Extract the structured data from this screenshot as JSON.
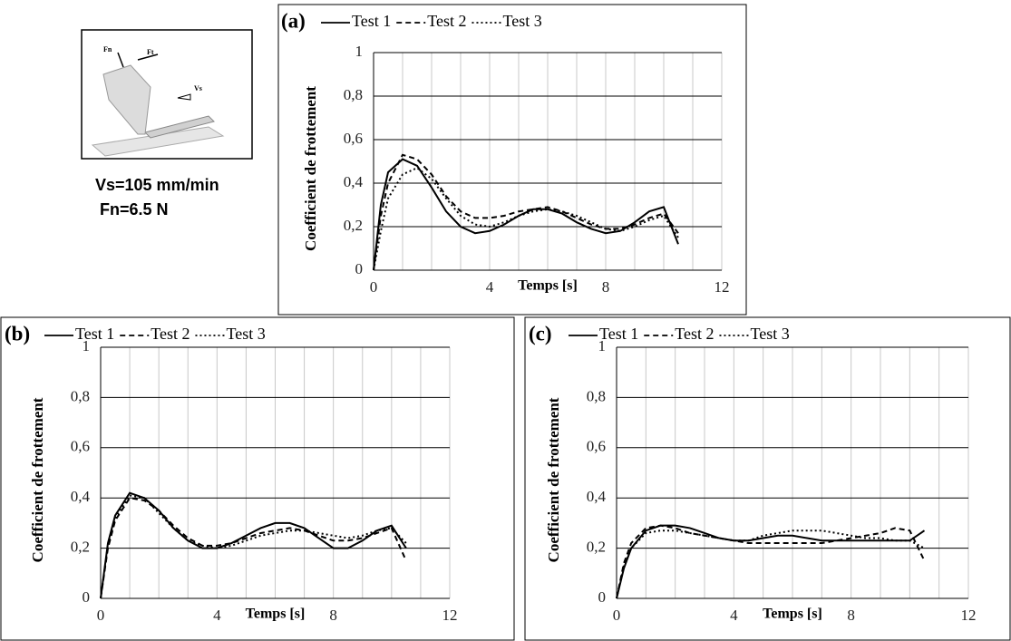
{
  "inset": {
    "labels": [
      "Fn",
      "Ft",
      "Vs"
    ],
    "caption": [
      "Vs=105 mm/min",
      "Fn=6.5 N"
    ]
  },
  "chart_data": [
    {
      "type": "line",
      "title": "(a)",
      "xlabel": "Temps [s]",
      "ylabel": "Coefficient de frottement",
      "x": [
        0,
        0.25,
        0.5,
        1,
        1.5,
        2,
        2.5,
        3,
        3.5,
        4,
        4.5,
        5,
        5.5,
        6,
        6.5,
        7,
        7.5,
        8,
        8.5,
        9,
        9.5,
        10,
        10.5
      ],
      "series": [
        {
          "name": "Test 1",
          "color": "#000000",
          "dash": "solid",
          "values": [
            0,
            0.3,
            0.45,
            0.51,
            0.48,
            0.38,
            0.27,
            0.2,
            0.17,
            0.18,
            0.21,
            0.25,
            0.28,
            0.28,
            0.26,
            0.22,
            0.19,
            0.17,
            0.18,
            0.22,
            0.27,
            0.29,
            0.12
          ]
        },
        {
          "name": "Test 2",
          "color": "#000000",
          "dash": "dashed",
          "values": [
            0,
            0.25,
            0.4,
            0.53,
            0.51,
            0.44,
            0.34,
            0.27,
            0.24,
            0.24,
            0.25,
            0.27,
            0.28,
            0.29,
            0.27,
            0.24,
            0.21,
            0.19,
            0.19,
            0.21,
            0.24,
            0.26,
            0.17
          ]
        },
        {
          "name": "Test 3",
          "color": "#000000",
          "dash": "dotted",
          "values": [
            0,
            0.18,
            0.33,
            0.44,
            0.47,
            0.42,
            0.33,
            0.25,
            0.21,
            0.2,
            0.22,
            0.25,
            0.27,
            0.28,
            0.27,
            0.25,
            0.22,
            0.19,
            0.18,
            0.2,
            0.23,
            0.25,
            0.15
          ]
        }
      ],
      "xlim": [
        0,
        12
      ],
      "xticks": [
        0,
        4,
        8,
        12
      ],
      "xgrid": [
        0,
        1,
        2,
        3,
        4,
        5,
        6,
        7,
        8,
        9,
        10,
        11,
        12
      ],
      "ylim": [
        0,
        1
      ],
      "yticks": [
        0,
        {
          "value": 0.2,
          "label": "0,2"
        },
        {
          "value": 0.4,
          "label": "0,4"
        },
        {
          "value": 0.6,
          "label": "0,6"
        },
        {
          "value": 0.8,
          "label": "0,8"
        },
        1
      ],
      "grid": true
    },
    {
      "type": "line",
      "title": "(b)",
      "xlabel": "Temps [s]",
      "ylabel": "Coefficient de frottement",
      "x": [
        0,
        0.25,
        0.5,
        1,
        1.5,
        2,
        2.5,
        3,
        3.5,
        4,
        4.5,
        5,
        5.5,
        6,
        6.5,
        7,
        7.5,
        8,
        8.5,
        9,
        9.5,
        10,
        10.5
      ],
      "series": [
        {
          "name": "Test 1",
          "color": "#000000",
          "dash": "solid",
          "values": [
            0,
            0.22,
            0.33,
            0.42,
            0.4,
            0.35,
            0.28,
            0.23,
            0.2,
            0.2,
            0.22,
            0.25,
            0.28,
            0.3,
            0.3,
            0.28,
            0.24,
            0.2,
            0.2,
            0.23,
            0.27,
            0.29,
            0.2
          ]
        },
        {
          "name": "Test 2",
          "color": "#000000",
          "dash": "dashed",
          "values": [
            0,
            0.2,
            0.31,
            0.4,
            0.39,
            0.35,
            0.29,
            0.24,
            0.21,
            0.21,
            0.22,
            0.24,
            0.26,
            0.27,
            0.28,
            0.27,
            0.25,
            0.23,
            0.23,
            0.24,
            0.26,
            0.28,
            0.15
          ]
        },
        {
          "name": "Test 3",
          "color": "#000000",
          "dash": "dotted",
          "values": [
            0,
            0.21,
            0.32,
            0.41,
            0.4,
            0.34,
            0.28,
            0.23,
            0.21,
            0.2,
            0.21,
            0.23,
            0.25,
            0.26,
            0.27,
            0.27,
            0.26,
            0.25,
            0.24,
            0.25,
            0.27,
            0.28,
            0.22
          ]
        }
      ],
      "xlim": [
        0,
        12
      ],
      "xticks": [
        0,
        4,
        8,
        12
      ],
      "xgrid": [
        0,
        1,
        2,
        3,
        4,
        5,
        6,
        7,
        8,
        9,
        10,
        11,
        12
      ],
      "ylim": [
        0,
        1
      ],
      "yticks": [
        0,
        {
          "value": 0.2,
          "label": "0,2"
        },
        {
          "value": 0.4,
          "label": "0,4"
        },
        {
          "value": 0.6,
          "label": "0,6"
        },
        {
          "value": 0.8,
          "label": "0,8"
        },
        1
      ],
      "grid": true
    },
    {
      "type": "line",
      "title": "(c)",
      "xlabel": "Temps [s]",
      "ylabel": "Coefficient de frottement",
      "x": [
        0,
        0.25,
        0.5,
        1,
        1.5,
        2,
        2.5,
        3,
        3.5,
        4,
        4.5,
        5,
        5.5,
        6,
        6.5,
        7,
        7.5,
        8,
        8.5,
        9,
        9.5,
        10,
        10.5
      ],
      "series": [
        {
          "name": "Test 1",
          "color": "#000000",
          "dash": "solid",
          "values": [
            0,
            0.12,
            0.2,
            0.27,
            0.29,
            0.29,
            0.28,
            0.26,
            0.24,
            0.23,
            0.23,
            0.24,
            0.25,
            0.25,
            0.24,
            0.23,
            0.23,
            0.23,
            0.23,
            0.23,
            0.23,
            0.23,
            0.27
          ]
        },
        {
          "name": "Test 2",
          "color": "#000000",
          "dash": "dashed",
          "values": [
            0,
            0.14,
            0.22,
            0.28,
            0.29,
            0.28,
            0.26,
            0.25,
            0.24,
            0.23,
            0.22,
            0.22,
            0.22,
            0.22,
            0.22,
            0.22,
            0.23,
            0.24,
            0.25,
            0.26,
            0.28,
            0.27,
            0.15
          ]
        },
        {
          "name": "Test 3",
          "color": "#000000",
          "dash": "dotted",
          "values": [
            0,
            0.13,
            0.2,
            0.26,
            0.27,
            0.27,
            0.26,
            0.25,
            0.24,
            0.23,
            0.23,
            0.25,
            0.26,
            0.27,
            0.27,
            0.27,
            0.26,
            0.25,
            0.24,
            0.24,
            0.23,
            0.23,
            0.2
          ]
        }
      ],
      "xlim": [
        0,
        12
      ],
      "xticks": [
        0,
        4,
        8,
        12
      ],
      "xgrid": [
        0,
        1,
        2,
        3,
        4,
        5,
        6,
        7,
        8,
        9,
        10,
        11,
        12
      ],
      "ylim": [
        0,
        1
      ],
      "yticks": [
        0,
        {
          "value": 0.2,
          "label": "0,2"
        },
        {
          "value": 0.4,
          "label": "0,4"
        },
        {
          "value": 0.6,
          "label": "0,6"
        },
        {
          "value": 0.8,
          "label": "0,8"
        },
        1
      ],
      "grid": true
    }
  ]
}
